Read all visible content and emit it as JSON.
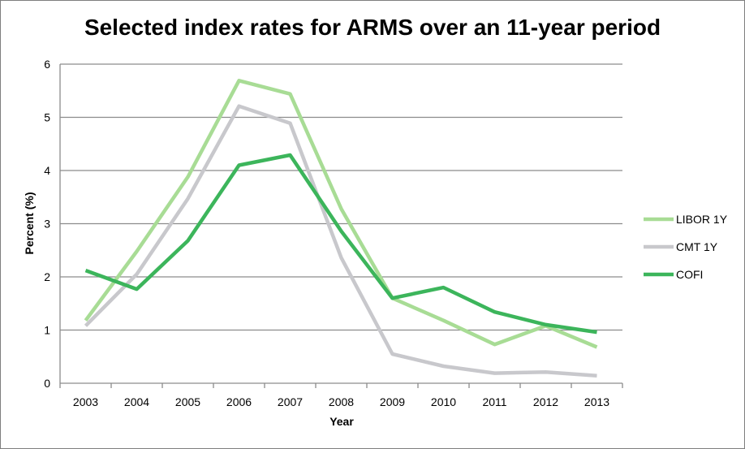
{
  "chart_data": {
    "type": "line",
    "title": "Selected index rates for ARMS over an 11-year period",
    "xlabel": "Year",
    "ylabel": "Percent (%)",
    "x": [
      "2003",
      "2004",
      "2005",
      "2006",
      "2007",
      "2008",
      "2009",
      "2010",
      "2011",
      "2012",
      "2013"
    ],
    "ylim": [
      0,
      6
    ],
    "yticks": [
      "0",
      "1",
      "2",
      "3",
      "4",
      "5",
      "6"
    ],
    "grid": "horizontal",
    "legend_position": "right",
    "series": [
      {
        "name": "LIBOR 1Y",
        "color": "#a8dc95",
        "values": [
          1.18,
          2.48,
          3.88,
          5.69,
          5.44,
          3.28,
          1.6,
          1.18,
          0.73,
          1.08,
          0.68
        ]
      },
      {
        "name": "CMT 1Y",
        "color": "#c8c8cc",
        "values": [
          1.08,
          2.05,
          3.47,
          5.21,
          4.89,
          2.36,
          0.55,
          0.32,
          0.19,
          0.21,
          0.14
        ]
      },
      {
        "name": "COFI",
        "color": "#3cb55b",
        "values": [
          2.12,
          1.77,
          2.68,
          4.1,
          4.29,
          2.86,
          1.6,
          1.8,
          1.34,
          1.1,
          0.96
        ]
      }
    ]
  }
}
